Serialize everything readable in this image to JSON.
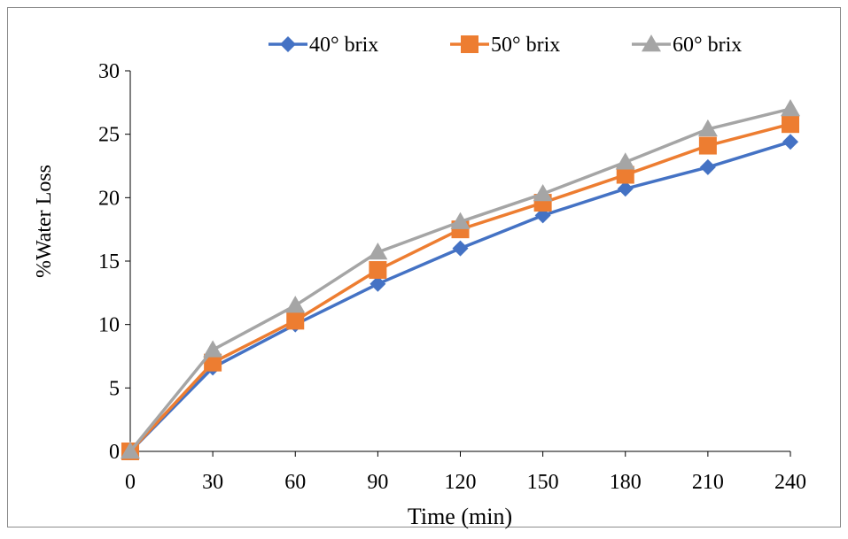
{
  "chart_data": {
    "type": "line",
    "title": "",
    "xlabel": "Time (min)",
    "ylabel": "%Water Loss",
    "x": [
      0,
      30,
      60,
      90,
      120,
      150,
      180,
      210,
      240
    ],
    "x_tick_labels": [
      "0",
      "30",
      "60",
      "90",
      "120",
      "150",
      "180",
      "210",
      "240"
    ],
    "y_tick_labels": [
      "0",
      "5",
      "10",
      "15",
      "20",
      "25",
      "30"
    ],
    "ylim": [
      0,
      30
    ],
    "grid": false,
    "legend_position": "top",
    "series": [
      {
        "name": "40° brix",
        "color": "#4472C4",
        "marker": "diamond",
        "values": [
          0,
          6.6,
          10,
          13.2,
          16,
          18.6,
          20.7,
          22.4,
          24.4
        ]
      },
      {
        "name": "50° brix",
        "color": "#ED7D31",
        "marker": "square",
        "values": [
          0,
          7,
          10.3,
          14.3,
          17.5,
          19.6,
          21.8,
          24.1,
          25.8
        ]
      },
      {
        "name": "60° brix",
        "color": "#A5A5A5",
        "marker": "triangle",
        "values": [
          0,
          8,
          11.5,
          15.7,
          18.1,
          20.3,
          22.8,
          25.4,
          27
        ]
      }
    ]
  }
}
